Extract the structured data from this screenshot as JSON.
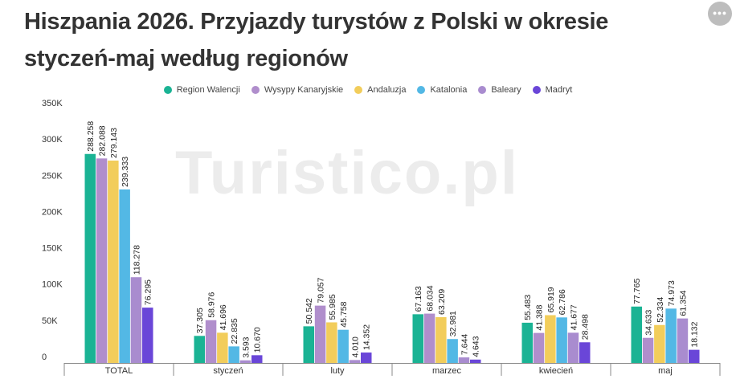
{
  "title": "Hiszpania 2026. Przyjazdy turystów z Polski w okresie styczeń-maj według regionów",
  "watermark": "Turistico.pl",
  "menu_icon": "ellipsis-icon",
  "chart_data": {
    "type": "bar",
    "title": "Hiszpania 2026. Przyjazdy turystów z Polski w okresie styczeń-maj według regionów",
    "categories": [
      "TOTAL",
      "styczeń",
      "luty",
      "marzec",
      "kwiecień",
      "maj"
    ],
    "series": [
      {
        "name": "Region Walencji",
        "color": "#1ab394",
        "values": [
          288258,
          37305,
          50542,
          67163,
          55483,
          77765
        ],
        "labels": [
          "288.258",
          "37.305",
          "50.542",
          "67.163",
          "55.483",
          "77.765"
        ]
      },
      {
        "name": "Wysypy Kanaryjskie",
        "color": "#b08ecc",
        "values": [
          282088,
          58976,
          79057,
          68034,
          41388,
          34633
        ],
        "labels": [
          "282.088",
          "58.976",
          "79.057",
          "68.034",
          "41.388",
          "34.633"
        ]
      },
      {
        "name": "Andaluzja",
        "color": "#f2cd5b",
        "values": [
          279143,
          41696,
          55985,
          63209,
          65919,
          52334
        ],
        "labels": [
          "279.143",
          "41.696",
          "55.985",
          "63.209",
          "65.919",
          "52.334"
        ]
      },
      {
        "name": "Katalonia",
        "color": "#53b8e5",
        "values": [
          239333,
          22835,
          45758,
          32981,
          62786,
          74973
        ],
        "labels": [
          "239.333",
          "22.835",
          "45.758",
          "32.981",
          "62.786",
          "74.973"
        ]
      },
      {
        "name": "Baleary",
        "color": "#a98ccf",
        "values": [
          118278,
          3593,
          4010,
          7644,
          41677,
          61354
        ],
        "labels": [
          "118.278",
          "3.593",
          "4.010",
          "7.644",
          "41.677",
          "61.354"
        ]
      },
      {
        "name": "Madryt",
        "color": "#6a46d8",
        "values": [
          76295,
          10670,
          14352,
          4643,
          28498,
          18132
        ],
        "labels": [
          "76.295",
          "10.670",
          "14.352",
          "4.643",
          "28.498",
          "18.132"
        ]
      }
    ],
    "yticks": [
      "0",
      "50K",
      "100K",
      "150K",
      "200K",
      "250K",
      "300K",
      "350K"
    ],
    "ylim": [
      0,
      350000
    ],
    "xlabel": "",
    "ylabel": "",
    "legend": "top",
    "grid": false
  }
}
